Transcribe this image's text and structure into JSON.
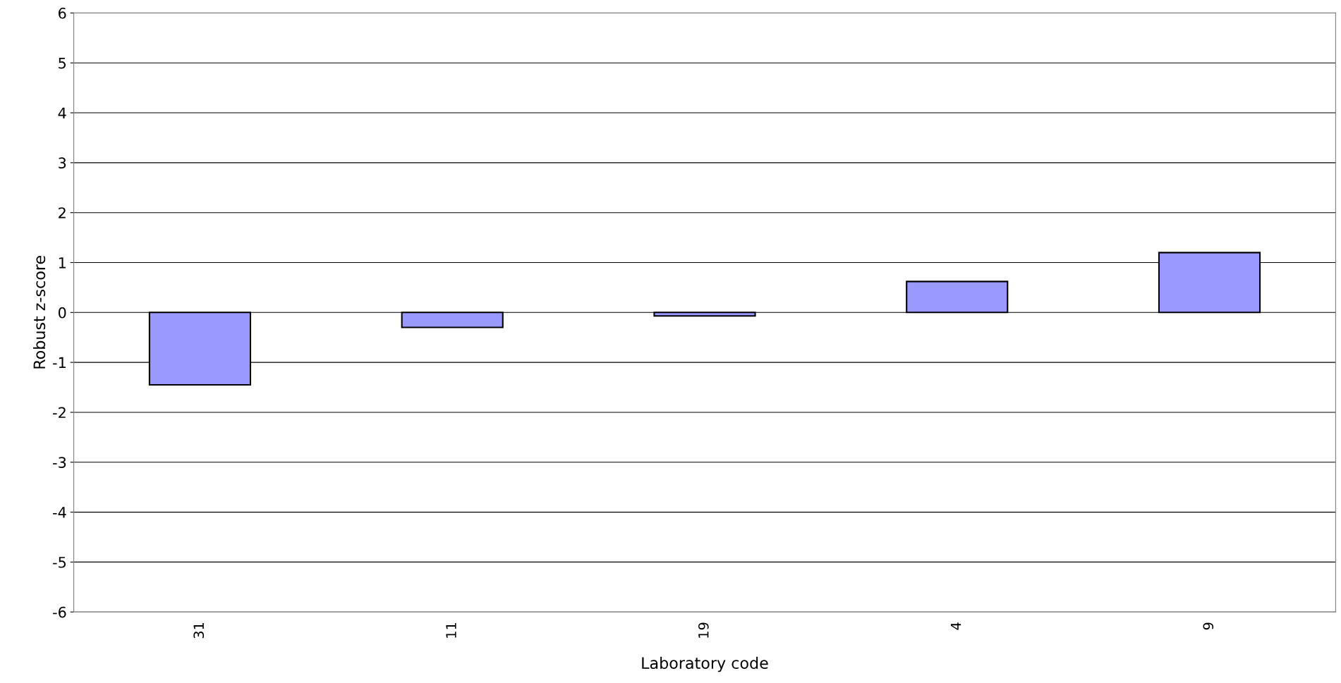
{
  "chart_data": {
    "type": "bar",
    "xlabel": "Laboratory code",
    "ylabel": "Robust z-score",
    "categories": [
      "31",
      "11",
      "19",
      "4",
      "9"
    ],
    "values": [
      -1.45,
      -0.3,
      -0.07,
      0.62,
      1.2
    ],
    "color": "#9999ff",
    "ylim": [
      -6,
      6
    ],
    "yticks": [
      -6,
      -5,
      -4,
      -3,
      -2,
      -1,
      0,
      1,
      2,
      3,
      4,
      5,
      6
    ],
    "grid": "y"
  }
}
